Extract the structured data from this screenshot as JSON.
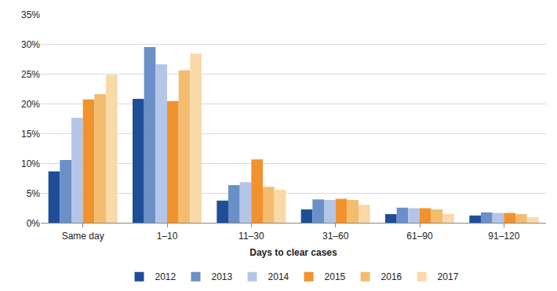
{
  "chart_data": {
    "type": "bar",
    "x_label": "Days to clear cases",
    "categories": [
      "Same day",
      "1–10",
      "11–30",
      "31–60",
      "61–90",
      "91–120"
    ],
    "series": [
      {
        "name": "2012",
        "color": "#1f4e99",
        "values": [
          8.7,
          20.9,
          3.8,
          2.3,
          1.5,
          1.3
        ]
      },
      {
        "name": "2013",
        "color": "#6b8fc7",
        "values": [
          10.6,
          29.6,
          6.4,
          4.0,
          2.6,
          1.8
        ]
      },
      {
        "name": "2014",
        "color": "#b4c6e7",
        "values": [
          17.7,
          26.7,
          6.9,
          3.9,
          2.5,
          1.7
        ]
      },
      {
        "name": "2015",
        "color": "#f0922e",
        "values": [
          20.8,
          20.5,
          10.7,
          4.1,
          2.5,
          1.7
        ]
      },
      {
        "name": "2016",
        "color": "#f4bc6e",
        "values": [
          21.7,
          25.7,
          6.1,
          3.9,
          2.3,
          1.5
        ]
      },
      {
        "name": "2017",
        "color": "#f9d9a8",
        "values": [
          24.9,
          28.5,
          5.6,
          3.1,
          1.5,
          1.0
        ]
      }
    ],
    "ylim": [
      0,
      35
    ],
    "yticks": [
      {
        "value": 0,
        "label": "0%"
      },
      {
        "value": 5,
        "label": "5%"
      },
      {
        "value": 10,
        "label": "10%"
      },
      {
        "value": 15,
        "label": "15%"
      },
      {
        "value": 20,
        "label": "20%"
      },
      {
        "value": 25,
        "label": "25%"
      },
      {
        "value": 30,
        "label": "30%"
      },
      {
        "value": 35,
        "label": "35%"
      }
    ],
    "grid": true,
    "legend": "bottom"
  }
}
